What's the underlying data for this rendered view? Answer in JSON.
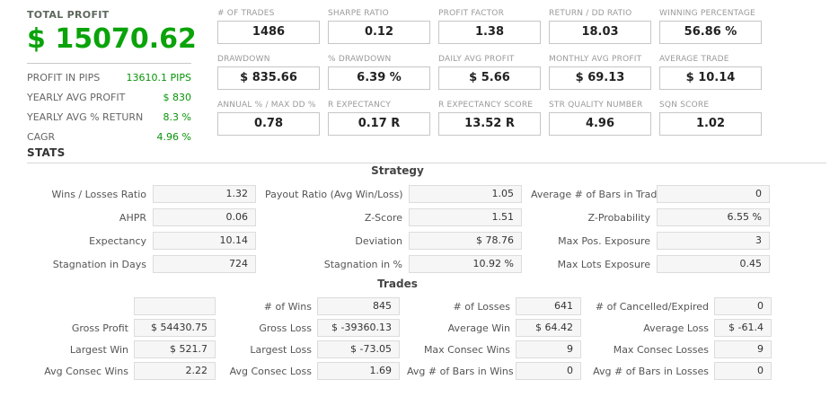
{
  "colors": {
    "total_profit_green": "#0aa30a",
    "profit_value_green": "#089408",
    "metric_label_gray": "#9a9a9a",
    "value_box_bg": "#f6f6f6"
  },
  "left_panel": {
    "title": "TOTAL PROFIT",
    "total": "$ 15070.62",
    "rows": [
      {
        "label": "PROFIT IN PIPS",
        "value": "13610.1 PIPS"
      },
      {
        "label": "YEARLY AVG PROFIT",
        "value": "$ 830"
      },
      {
        "label": "YEARLY AVG % RETURN",
        "value": "8.3 %"
      },
      {
        "label": "CAGR",
        "value": "4.96 %"
      }
    ]
  },
  "metrics": [
    {
      "label": "# OF TRADES",
      "value": "1486"
    },
    {
      "label": "SHARPE RATIO",
      "value": "0.12"
    },
    {
      "label": "PROFIT FACTOR",
      "value": "1.38"
    },
    {
      "label": "RETURN / DD RATIO",
      "value": "18.03"
    },
    {
      "label": "WINNING PERCENTAGE",
      "value": "56.86 %"
    },
    {
      "label": "DRAWDOWN",
      "value": "$ 835.66"
    },
    {
      "label": "% DRAWDOWN",
      "value": "6.39 %"
    },
    {
      "label": "DAILY AVG PROFIT",
      "value": "$ 5.66"
    },
    {
      "label": "MONTHLY AVG PROFIT",
      "value": "$ 69.13"
    },
    {
      "label": "AVERAGE TRADE",
      "value": "$ 10.14"
    },
    {
      "label": "ANNUAL % / MAX DD %",
      "value": "0.78"
    },
    {
      "label": "R EXPECTANCY",
      "value": "0.17 R"
    },
    {
      "label": "R EXPECTANCY SCORE",
      "value": "13.52 R"
    },
    {
      "label": "STR QUALITY NUMBER",
      "value": "4.96"
    },
    {
      "label": "SQN SCORE",
      "value": "1.02"
    }
  ],
  "stats": {
    "heading": "STATS",
    "strategy": {
      "title": "Strategy",
      "rows": [
        [
          {
            "label": "Wins / Losses Ratio",
            "value": "1.32"
          },
          {
            "label": "Payout Ratio (Avg Win/Loss)",
            "value": "1.05"
          },
          {
            "label": "Average # of Bars in Trade",
            "value": "0"
          }
        ],
        [
          {
            "label": "AHPR",
            "value": "0.06"
          },
          {
            "label": "Z-Score",
            "value": "1.51"
          },
          {
            "label": "Z-Probability",
            "value": "6.55 %"
          }
        ],
        [
          {
            "label": "Expectancy",
            "value": "10.14"
          },
          {
            "label": "Deviation",
            "value": "$ 78.76"
          },
          {
            "label": "Max Pos. Exposure",
            "value": "3"
          }
        ],
        [
          {
            "label": "Stagnation in Days",
            "value": "724"
          },
          {
            "label": "Stagnation in %",
            "value": "10.92 %"
          },
          {
            "label": "Max Lots Exposure",
            "value": "0.45"
          }
        ]
      ]
    },
    "trades": {
      "title": "Trades",
      "rows": [
        [
          {
            "label": "",
            "value": ""
          },
          {
            "label": "# of Wins",
            "value": "845"
          },
          {
            "label": "# of Losses",
            "value": "641"
          },
          {
            "label": "# of Cancelled/Expired",
            "value": "0"
          }
        ],
        [
          {
            "label": "Gross Profit",
            "value": "$ 54430.75"
          },
          {
            "label": "Gross Loss",
            "value": "$ -39360.13"
          },
          {
            "label": "Average Win",
            "value": "$ 64.42"
          },
          {
            "label": "Average Loss",
            "value": "$ -61.4"
          }
        ],
        [
          {
            "label": "Largest Win",
            "value": "$ 521.7"
          },
          {
            "label": "Largest Loss",
            "value": "$ -73.05"
          },
          {
            "label": "Max Consec Wins",
            "value": "9"
          },
          {
            "label": "Max Consec Losses",
            "value": "9"
          }
        ],
        [
          {
            "label": "Avg Consec Wins",
            "value": "2.22"
          },
          {
            "label": "Avg Consec Loss",
            "value": "1.69"
          },
          {
            "label": "Avg # of Bars in Wins",
            "value": "0"
          },
          {
            "label": "Avg # of Bars in Losses",
            "value": "0"
          }
        ]
      ]
    }
  }
}
